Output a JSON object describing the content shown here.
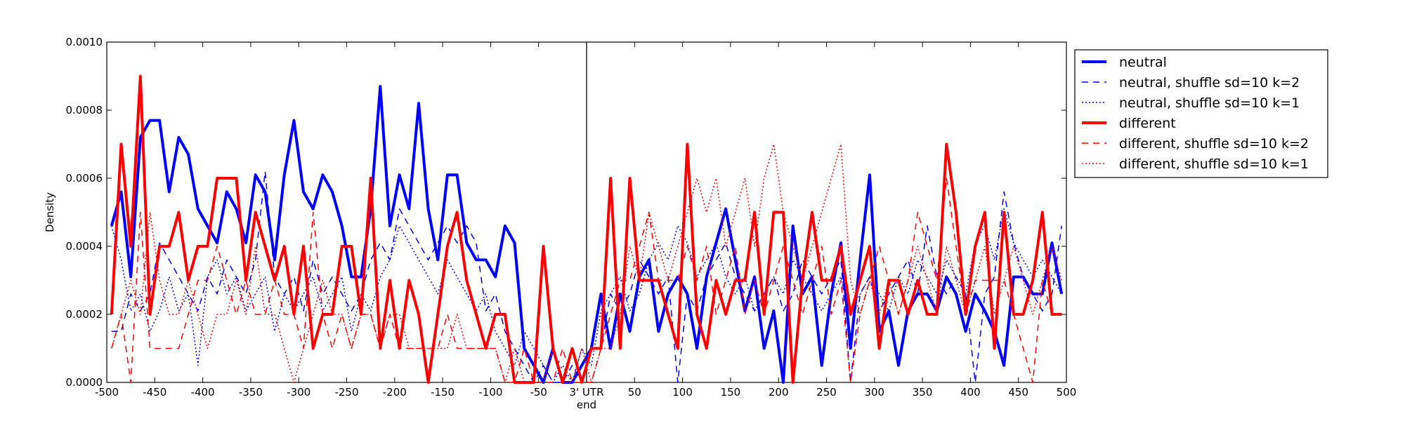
{
  "chart_data": {
    "type": "line",
    "title": "",
    "xlabel": "end",
    "ylabel": "Density",
    "xlim": [
      -500,
      500
    ],
    "ylim": [
      0,
      0.001
    ],
    "x_ticks": [
      -500,
      -450,
      -400,
      -350,
      -300,
      -250,
      -200,
      -150,
      -100,
      -50,
      0,
      50,
      100,
      150,
      200,
      250,
      300,
      350,
      400,
      450,
      500
    ],
    "x_tick_labels": [
      "-500",
      "-450",
      "-400",
      "-350",
      "-300",
      "-250",
      "-200",
      "-150",
      "-100",
      "-50",
      "3' UTR",
      "50",
      "100",
      "150",
      "200",
      "250",
      "300",
      "350",
      "400",
      "450",
      "500"
    ],
    "y_ticks": [
      0,
      0.0002,
      0.0004,
      0.0006,
      0.0008,
      0.001
    ],
    "y_tick_labels": [
      "0.0000",
      "0.0002",
      "0.0004",
      "0.0006",
      "0.0008",
      "0.0010"
    ],
    "vline": 0,
    "grid": false,
    "legend_position": "outside-right",
    "x": [
      -495,
      -485,
      -475,
      -465,
      -455,
      -445,
      -435,
      -425,
      -415,
      -405,
      -395,
      -385,
      -375,
      -365,
      -355,
      -345,
      -335,
      -325,
      -315,
      -305,
      -295,
      -285,
      -275,
      -265,
      -255,
      -245,
      -235,
      -225,
      -215,
      -205,
      -195,
      -185,
      -175,
      -165,
      -155,
      -145,
      -135,
      -125,
      -115,
      -105,
      -95,
      -85,
      -75,
      -65,
      -55,
      -45,
      -35,
      -25,
      -15,
      -5,
      5,
      15,
      25,
      35,
      45,
      55,
      65,
      75,
      85,
      95,
      105,
      115,
      125,
      135,
      145,
      155,
      165,
      175,
      185,
      195,
      205,
      215,
      225,
      235,
      245,
      255,
      265,
      275,
      285,
      295,
      305,
      315,
      325,
      335,
      345,
      355,
      365,
      375,
      385,
      395,
      405,
      415,
      425,
      435,
      445,
      455,
      465,
      475,
      485,
      495
    ],
    "series": [
      {
        "name": "neutral",
        "color": "#0000ff",
        "style": "solid",
        "width": 4,
        "values": [
          0.00046,
          0.00056,
          0.00031,
          0.00072,
          0.00077,
          0.00077,
          0.00056,
          0.00072,
          0.00067,
          0.00051,
          0.00046,
          0.00041,
          0.00056,
          0.00051,
          0.00041,
          0.00061,
          0.00056,
          0.00036,
          0.00061,
          0.00077,
          0.00056,
          0.00051,
          0.00061,
          0.00056,
          0.00046,
          0.00031,
          0.00031,
          0.00051,
          0.00087,
          0.00046,
          0.00061,
          0.00051,
          0.00082,
          0.00051,
          0.00036,
          0.00061,
          0.00061,
          0.00041,
          0.00036,
          0.00036,
          0.00031,
          0.00046,
          0.00041,
          0.0001,
          5e-05,
          0.0,
          0.0001,
          0.0,
          0.0,
          5e-05,
          0.0001,
          0.00026,
          0.0001,
          0.00026,
          0.00015,
          0.00031,
          0.00036,
          0.00015,
          0.00026,
          0.00031,
          0.00026,
          0.0001,
          0.00031,
          0.00041,
          0.00051,
          0.00036,
          0.00021,
          0.00031,
          0.0001,
          0.00021,
          0.0,
          0.00046,
          0.00026,
          0.00031,
          5e-05,
          0.00026,
          0.00041,
          0.0001,
          0.00036,
          0.00061,
          0.00015,
          0.00021,
          5e-05,
          0.00021,
          0.00026,
          0.00026,
          0.00021,
          0.00031,
          0.00026,
          0.00015,
          0.00026,
          0.00021,
          0.00015,
          5e-05,
          0.00031,
          0.00031,
          0.00026,
          0.00026,
          0.00041,
          0.00026
        ]
      },
      {
        "name": "neutral, shuffle sd=10 k=2",
        "color": "#0000ff",
        "style": "dashed",
        "width": 1.5,
        "values": [
          0.00015,
          0.00015,
          0.00026,
          0.00021,
          0.00026,
          0.00041,
          0.00036,
          0.00031,
          0.00026,
          0.00021,
          0.00031,
          0.00026,
          0.00036,
          0.00031,
          0.00026,
          0.00036,
          0.00062,
          0.00031,
          0.00026,
          0.00031,
          0.00021,
          0.00036,
          0.00026,
          0.00031,
          0.00026,
          0.00021,
          0.00026,
          0.00036,
          0.00041,
          0.00036,
          0.00051,
          0.00046,
          0.00041,
          0.00036,
          0.00041,
          0.00046,
          0.00041,
          0.00046,
          0.00041,
          0.00021,
          0.00026,
          0.00015,
          0.0001,
          5e-05,
          0.0,
          5e-05,
          0.0,
          0.0,
          5e-05,
          0.0,
          0.0001,
          0.0001,
          0.00026,
          0.00021,
          0.00026,
          0.00036,
          0.00031,
          0.00026,
          0.00031,
          0.0,
          0.00026,
          0.00021,
          0.00031,
          0.00036,
          0.00041,
          0.00031,
          0.00026,
          0.00021,
          0.00026,
          0.00031,
          0.00021,
          0.00026,
          0.00036,
          0.00031,
          0.00026,
          0.00031,
          0.00036,
          0.0,
          0.00026,
          0.00031,
          0.00021,
          0.00026,
          0.00031,
          0.00036,
          0.00026,
          0.00046,
          0.00031,
          0.00026,
          0.00031,
          0.00026,
          0.0,
          0.00026,
          0.00031,
          0.00056,
          0.00041,
          0.00031,
          0.00026,
          0.00021,
          0.00026,
          0.00046
        ]
      },
      {
        "name": "neutral, shuffle sd=10 k=1",
        "color": "#0000ff",
        "style": "dotted",
        "width": 1.5,
        "values": [
          0.00046,
          0.00036,
          0.00021,
          0.00026,
          0.00015,
          0.00021,
          0.00031,
          0.00021,
          0.00026,
          5e-05,
          0.00031,
          0.00036,
          0.00026,
          0.00031,
          0.00021,
          0.00026,
          0.00031,
          0.00015,
          0.00026,
          0.00021,
          0.00026,
          0.00031,
          0.00021,
          0.00026,
          0.00031,
          0.00015,
          0.00026,
          0.00021,
          0.00031,
          0.00036,
          0.00046,
          0.00041,
          0.00036,
          0.00031,
          0.00026,
          0.00036,
          0.00031,
          0.00026,
          0.00021,
          0.00026,
          0.00015,
          0.0001,
          5e-05,
          0.00015,
          0.0001,
          5e-05,
          0.0,
          5e-05,
          0.0,
          0.0001,
          5e-05,
          0.00021,
          0.00026,
          0.00031,
          0.00021,
          0.00026,
          0.00036,
          0.00041,
          0.00036,
          0.00046,
          0.00041,
          0.00031,
          0.00036,
          0.00041,
          0.00031,
          0.00026,
          0.00031,
          0.00021,
          0.00026,
          0.00031,
          0.00026,
          0.00036,
          0.00031,
          0.00026,
          0.00021,
          0.00026,
          0.00031,
          0.00021,
          0.00026,
          0.00031,
          0.00026,
          0.00021,
          0.00031,
          0.00026,
          0.00036,
          0.00031,
          0.00026,
          0.00036,
          0.00031,
          0.00026,
          0.00041,
          0.00046,
          0.00036,
          0.00051,
          0.00041,
          0.00036,
          0.00031,
          0.00036,
          0.00031,
          0.00026
        ]
      },
      {
        "name": "different",
        "color": "#ff0000",
        "style": "solid",
        "width": 4,
        "values": [
          0.0002,
          0.0007,
          0.0004,
          0.0009,
          0.0002,
          0.0004,
          0.0004,
          0.0005,
          0.0003,
          0.0004,
          0.0004,
          0.0006,
          0.0006,
          0.0006,
          0.0003,
          0.0005,
          0.0004,
          0.0003,
          0.0004,
          0.0002,
          0.0004,
          0.0001,
          0.0002,
          0.0002,
          0.0004,
          0.0004,
          0.0002,
          0.0006,
          0.0001,
          0.0003,
          0.0001,
          0.0003,
          0.0002,
          0.0,
          0.0002,
          0.0004,
          0.0005,
          0.0003,
          0.0002,
          0.0001,
          0.0002,
          0.0002,
          0.0,
          0.0,
          0.0,
          0.0004,
          0.0001,
          0.0,
          0.0001,
          0.0,
          0.0001,
          0.0001,
          0.0006,
          0.0001,
          0.0006,
          0.0003,
          0.0003,
          0.0003,
          0.0002,
          0.0001,
          0.0007,
          0.0002,
          0.0001,
          0.0003,
          0.0002,
          0.0003,
          0.0003,
          0.0005,
          0.0002,
          0.0005,
          0.0005,
          0.0,
          0.0003,
          0.0005,
          0.0003,
          0.0003,
          0.0004,
          0.0002,
          0.0003,
          0.0004,
          0.0001,
          0.0003,
          0.0003,
          0.0002,
          0.0003,
          0.0002,
          0.0002,
          0.0007,
          0.0005,
          0.0002,
          0.0004,
          0.0005,
          0.0001,
          0.0005,
          0.0002,
          0.0002,
          0.0003,
          0.0005,
          0.0002,
          0.0002
        ]
      },
      {
        "name": "different, shuffle sd=10 k=2",
        "color": "#ff0000",
        "style": "dashed",
        "width": 1.5,
        "values": [
          0.0001,
          0.0002,
          0.0,
          0.0005,
          0.0001,
          0.0001,
          0.0001,
          0.0001,
          0.0002,
          0.0003,
          0.0003,
          0.0004,
          0.0003,
          0.0002,
          0.0003,
          0.0002,
          0.0002,
          0.0003,
          0.0002,
          0.0002,
          0.0001,
          0.0005,
          0.0002,
          0.0001,
          0.0002,
          0.0001,
          0.0002,
          0.0002,
          0.0001,
          0.0002,
          0.0001,
          0.0001,
          0.0001,
          0.0001,
          0.0001,
          0.0002,
          0.0001,
          0.0001,
          0.0001,
          0.0001,
          0.0001,
          0.0,
          0.0,
          0.0001,
          0.0,
          0.0,
          0.0,
          0.0001,
          0.0,
          0.0,
          0.0,
          0.0001,
          0.0002,
          0.0003,
          0.0003,
          0.0004,
          0.0005,
          0.0003,
          0.0003,
          0.0003,
          0.0004,
          0.0003,
          0.0004,
          0.0002,
          0.0003,
          0.0004,
          0.0002,
          0.0003,
          0.0002,
          0.0003,
          0.0004,
          0.0003,
          0.0002,
          0.0003,
          0.0004,
          0.0002,
          0.0003,
          0.0,
          0.0002,
          0.0003,
          0.0004,
          0.0003,
          0.0002,
          0.0003,
          0.0005,
          0.0004,
          0.0003,
          0.0006,
          0.0004,
          0.0002,
          0.0003,
          0.0003,
          0.0003,
          0.0003,
          0.0002,
          0.0001,
          0.0,
          0.0003,
          0.0002,
          0.0002
        ]
      },
      {
        "name": "different, shuffle sd=10 k=1",
        "color": "#ff0000",
        "style": "dotted",
        "width": 1.5,
        "values": [
          0.0001,
          0.0002,
          0.0003,
          0.0002,
          0.0005,
          0.0003,
          0.0002,
          0.0002,
          0.0003,
          0.0002,
          0.0001,
          0.0002,
          0.0002,
          0.0003,
          0.0002,
          0.0004,
          0.0002,
          0.0002,
          0.0001,
          0.0,
          0.0001,
          0.0002,
          0.0003,
          0.0002,
          0.0002,
          0.0001,
          0.0002,
          0.0002,
          0.0001,
          0.0002,
          0.0002,
          0.0001,
          0.0001,
          0.0001,
          0.0001,
          0.0001,
          0.0002,
          0.0001,
          0.0001,
          0.0001,
          0.0001,
          0.0,
          0.0001,
          0.0,
          0.0,
          0.0,
          0.0001,
          0.0,
          0.0,
          0.0001,
          0.0,
          0.0001,
          0.0001,
          0.0002,
          0.0004,
          0.0003,
          0.0005,
          0.0004,
          0.0003,
          0.0004,
          0.0005,
          0.0006,
          0.0005,
          0.0006,
          0.0004,
          0.0005,
          0.0006,
          0.0004,
          0.0006,
          0.0007,
          0.0005,
          0.0004,
          0.0003,
          0.0004,
          0.0005,
          0.0006,
          0.0007,
          0.0003,
          0.0002,
          0.0003,
          0.0002,
          0.0003,
          0.0002,
          0.0003,
          0.0004,
          0.0003,
          0.0002,
          0.0004,
          0.0003,
          0.0002,
          0.0003,
          0.0004,
          0.0002,
          0.0003,
          0.0004,
          0.0003,
          0.0002,
          0.0003,
          0.0004,
          0.0003
        ]
      }
    ]
  }
}
